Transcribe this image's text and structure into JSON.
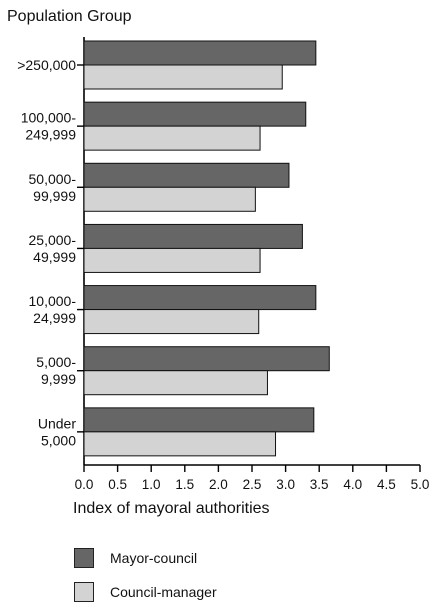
{
  "chart_data": {
    "type": "bar",
    "orientation": "horizontal",
    "y_axis_title": "Population Group",
    "xlabel": "Index of mayoral authorities",
    "xlim": [
      0.0,
      5.0
    ],
    "x_ticks": [
      "0.0",
      "0.5",
      "1.0",
      "1.5",
      "2.0",
      "2.5",
      "3.0",
      "3.5",
      "4.0",
      "4.5",
      "5.0"
    ],
    "categories": [
      [
        ">250,000"
      ],
      [
        "100,000-",
        "249,999"
      ],
      [
        "50,000-",
        "99,999"
      ],
      [
        "25,000-",
        "49,999"
      ],
      [
        "10,000-",
        "24,999"
      ],
      [
        "5,000-",
        "9,999"
      ],
      [
        "Under",
        "5,000"
      ]
    ],
    "series": [
      {
        "name": "Mayor-council",
        "color": "#666666",
        "values": [
          3.45,
          3.3,
          3.05,
          3.25,
          3.45,
          3.65,
          3.42
        ]
      },
      {
        "name": "Council-manager",
        "color": "#d3d3d3",
        "values": [
          2.95,
          2.62,
          2.55,
          2.62,
          2.6,
          2.73,
          2.85
        ]
      }
    ],
    "grid": false,
    "legend_position": "bottom-left"
  }
}
